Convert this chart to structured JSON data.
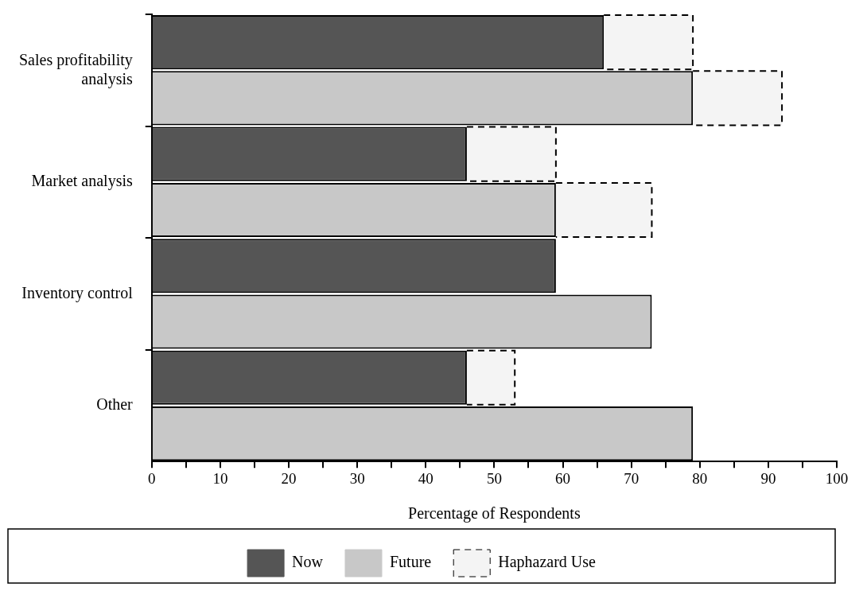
{
  "chart_data": {
    "type": "bar",
    "orientation": "horizontal",
    "stacked": true,
    "categories": [
      "Sales profitability analysis",
      null,
      "Market analysis",
      null,
      "Inventory control",
      null,
      "Other",
      null
    ],
    "series": [
      {
        "name": "Now",
        "color": "#555555",
        "values": [
          66,
          null,
          46,
          null,
          59,
          null,
          46,
          null
        ]
      },
      {
        "name": "Future",
        "color": "#c8c8c8",
        "values": [
          null,
          79,
          null,
          59,
          null,
          73,
          null,
          79
        ]
      },
      {
        "name": "Haphazard Use",
        "color": "#f4f4f4",
        "line_style": "dashed",
        "values": [
          13,
          13,
          13,
          14,
          null,
          null,
          7,
          null
        ]
      }
    ],
    "xlabel": "Percentage of Respondents",
    "xlim": [
      0,
      100
    ],
    "xticks": [
      0,
      {
        "value": 5,
        "label": null
      },
      10,
      {
        "value": 15,
        "label": null
      },
      20,
      {
        "value": 25,
        "label": null
      },
      30,
      {
        "value": 35,
        "label": null
      },
      40,
      {
        "value": 45,
        "label": null
      },
      50,
      {
        "value": 55,
        "label": null
      },
      60,
      {
        "value": 65,
        "label": null
      },
      70,
      {
        "value": 75,
        "label": null
      },
      80,
      {
        "value": 85,
        "label": null
      },
      90,
      {
        "value": 95,
        "label": null
      },
      100
    ],
    "grid": false,
    "legend": "bottom"
  }
}
